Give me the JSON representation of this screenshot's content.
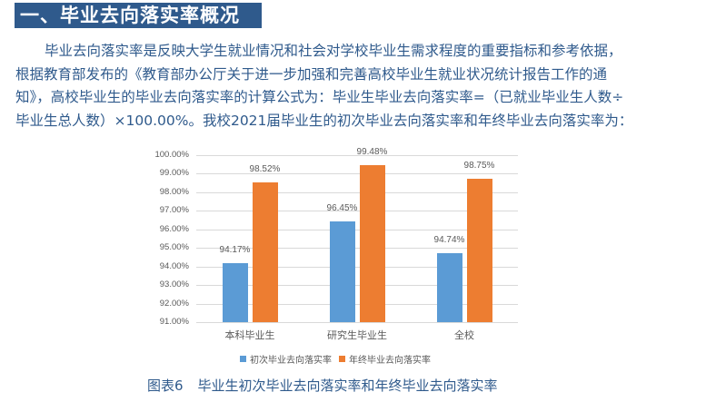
{
  "heading": "一、毕业去向落实率概况",
  "paragraph": {
    "lines": [
      "毕业去向落实率是反映大学生就业情况和社会对学校毕业生需求程度的重要指标和参考依据，",
      "根据教育部发布的《教育部办公厅关于进一步加强和完善高校毕业生就业状况统计报告工作的通",
      "知》，高校毕业生的毕业去向落实率的计算公式为：毕业生毕业去向落实率=（已就业毕业生人数÷",
      "毕业生总人数）×100.00%。我校2021届毕业生的初次毕业去向落实率和年终毕业去向落实率为："
    ]
  },
  "chart_data": {
    "type": "bar",
    "title": "",
    "categories": [
      "本科毕业生",
      "研究生毕业生",
      "全校"
    ],
    "series": [
      {
        "name": "初次毕业去向落实率",
        "color": "#5b9bd5",
        "values": [
          94.17,
          96.45,
          94.74
        ],
        "labels": [
          "94.17%",
          "96.45%",
          "94.74%"
        ]
      },
      {
        "name": "年终毕业去向落实率",
        "color": "#ed7d31",
        "values": [
          98.52,
          99.48,
          98.75
        ],
        "labels": [
          "98.52%",
          "99.48%",
          "98.75%"
        ]
      }
    ],
    "yticks": [
      "100.00%",
      "99.00%",
      "98.00%",
      "97.00%",
      "96.00%",
      "95.00%",
      "94.00%",
      "93.00%",
      "92.00%",
      "91.00%"
    ],
    "ylim": [
      91,
      100
    ],
    "xlabel": "",
    "ylabel": "",
    "grid": true,
    "legend_position": "bottom"
  },
  "caption": {
    "number": "图表6",
    "text": "毕业生初次毕业去向落实率和年终毕业去向落实率"
  }
}
